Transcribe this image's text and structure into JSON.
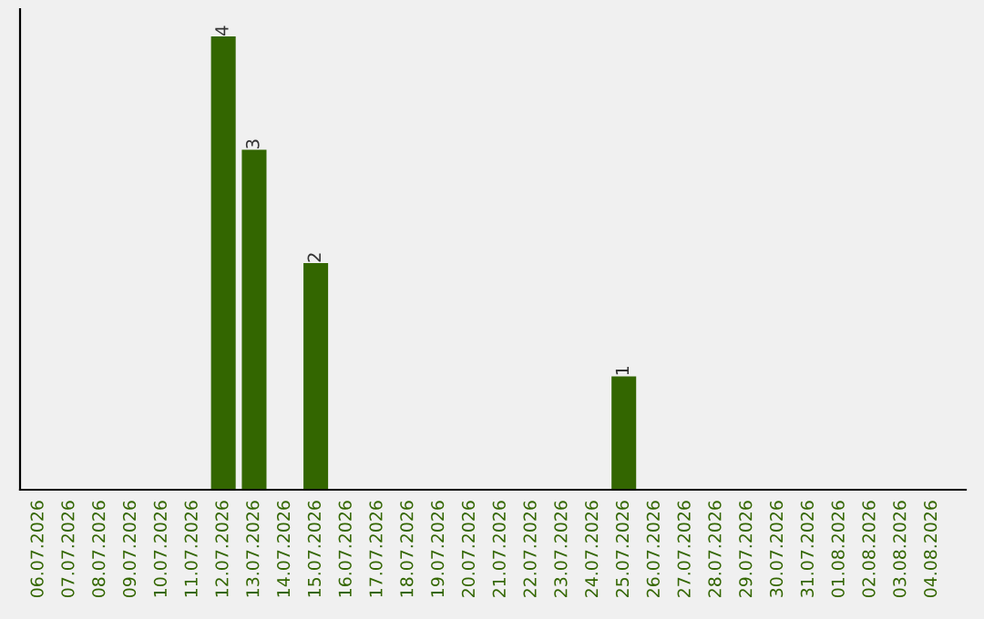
{
  "chart_data": {
    "type": "bar",
    "categories": [
      "06.07.2026",
      "07.07.2026",
      "08.07.2026",
      "09.07.2026",
      "10.07.2026",
      "11.07.2026",
      "12.07.2026",
      "13.07.2026",
      "14.07.2026",
      "15.07.2026",
      "16.07.2026",
      "17.07.2026",
      "18.07.2026",
      "19.07.2026",
      "20.07.2026",
      "21.07.2026",
      "22.07.2026",
      "23.07.2026",
      "24.07.2026",
      "25.07.2026",
      "26.07.2026",
      "27.07.2026",
      "28.07.2026",
      "29.07.2026",
      "30.07.2026",
      "31.07.2026",
      "01.08.2026",
      "02.08.2026",
      "03.08.2026",
      "04.08.2026"
    ],
    "values": [
      null,
      null,
      null,
      null,
      null,
      null,
      4,
      3,
      null,
      2,
      null,
      null,
      null,
      null,
      null,
      null,
      null,
      null,
      null,
      1,
      null,
      null,
      null,
      null,
      null,
      null,
      null,
      null,
      null,
      null
    ],
    "color": "#336600",
    "data_labels": true,
    "tick_labels": "x"
  }
}
